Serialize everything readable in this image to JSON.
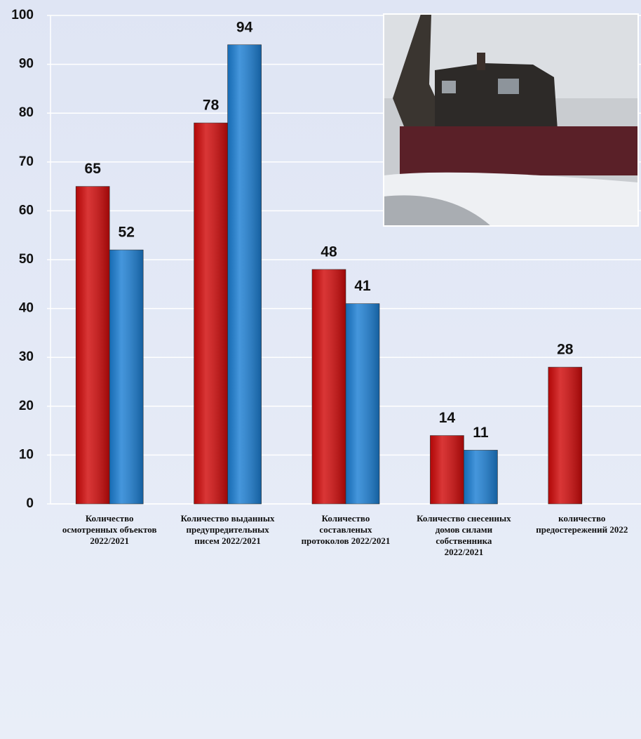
{
  "chart_data": {
    "type": "bar",
    "categories": [
      "Количество\nосмотренных объектов\n2022/2021",
      "Количество выданных\nпредупредительных\nписем 2022/2021",
      "Количество\nсоставленых\nпротоколов 2022/2021",
      "Количество снесенных\nдомов силами\nсобственника\n2022/2021",
      "количество\nпредостережений 2022"
    ],
    "series": [
      {
        "color": "#d10a0a",
        "values": [
          65,
          78,
          48,
          14,
          28
        ]
      },
      {
        "color": "#1c7fd4",
        "values": [
          52,
          94,
          41,
          11,
          null
        ]
      }
    ],
    "ylim": [
      0,
      100
    ],
    "yticks": [
      0,
      10,
      20,
      30,
      40,
      50,
      60,
      70,
      80,
      90,
      100
    ],
    "grid": true
  }
}
